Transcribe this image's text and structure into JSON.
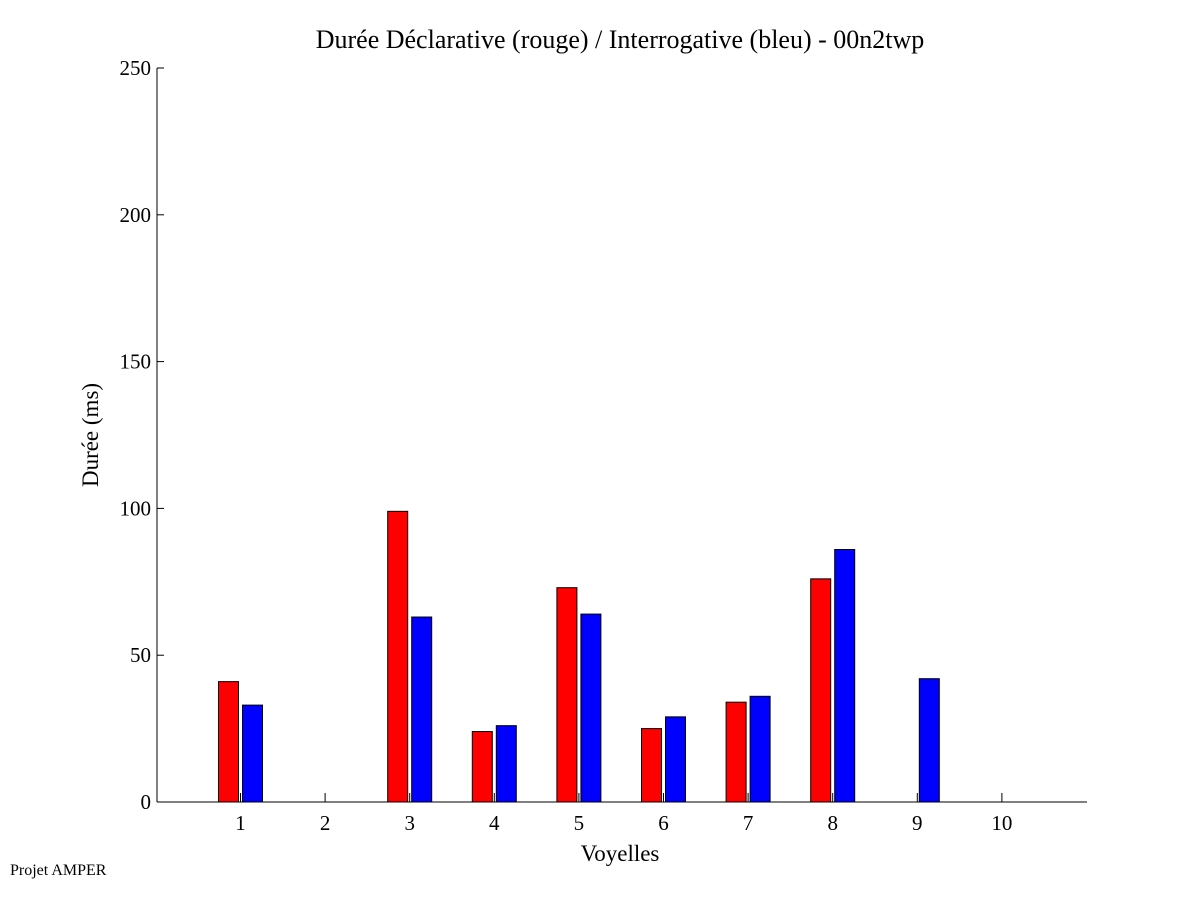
{
  "footer_text": "Projet AMPER",
  "chart_data": {
    "type": "bar",
    "title": "Durée Déclarative (rouge) / Interrogative (bleu) - 00n2twp",
    "xlabel": "Voyelles",
    "ylabel": "Durée (ms)",
    "categories": [
      "1",
      "2",
      "3",
      "4",
      "5",
      "6",
      "7",
      "8",
      "9",
      "10"
    ],
    "ylim": [
      0,
      250
    ],
    "yticks": [
      0,
      50,
      100,
      150,
      200,
      250
    ],
    "grid": false,
    "series": [
      {
        "color": "#ff0000",
        "values": [
          41,
          0,
          99,
          24,
          73,
          25,
          34,
          76,
          0,
          0
        ]
      },
      {
        "color": "#0000ff",
        "values": [
          33,
          0,
          63,
          26,
          64,
          29,
          36,
          86,
          42,
          0
        ]
      }
    ]
  }
}
